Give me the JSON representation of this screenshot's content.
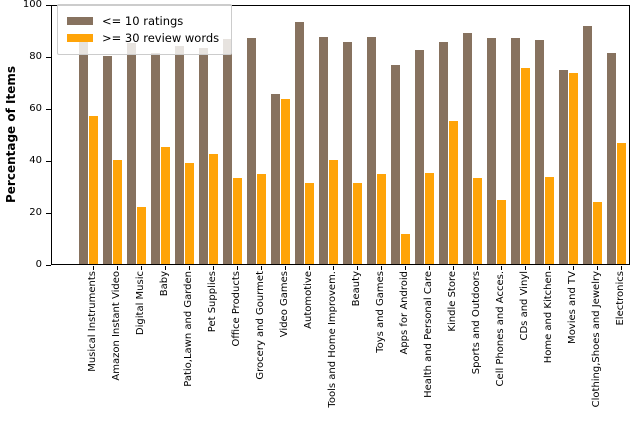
{
  "figure": {
    "background": "#ffffff",
    "axis_color": "#000000"
  },
  "chart_data": {
    "type": "bar",
    "title": "",
    "xlabel": "",
    "ylabel": "Percentage of Items",
    "ylim": [
      0,
      100
    ],
    "yticks": [
      0,
      20,
      40,
      60,
      80,
      100
    ],
    "grid": false,
    "legend_position": "upper left",
    "categories": [
      "Musical Instruments",
      "Amazon Instant Video",
      "Digital Music",
      "Baby",
      "Patio,Lawn and Garden",
      "Pet Supplies",
      "Office Products",
      "Grocery and Gourmet",
      "Video Games",
      "Automotive",
      "Tools and Home Improvem.",
      "Beauty",
      "Toys and Games",
      "Apps for Android",
      "Health and Personal Care",
      "Kindle Store",
      "Sports and Outdoors",
      "Cell Phones and Acces.",
      "CDs and Vinyl",
      "Home and Kitchen",
      "Movies and TV",
      "Clothing,Shoes and Jewelry",
      "Electronics"
    ],
    "series": [
      {
        "name": "<= 10 ratings",
        "color": "#87725f",
        "values": [
          86,
          80,
          85,
          81,
          84,
          83,
          86.5,
          87,
          65.5,
          93,
          87.5,
          85.5,
          87.5,
          76.5,
          82.5,
          85.5,
          89,
          87,
          87,
          86,
          74.5,
          91.5,
          81
        ]
      },
      {
        "name": ">= 30 review words",
        "color": "#ffa408",
        "values": [
          57,
          40,
          22,
          45,
          39,
          42.5,
          33,
          34.5,
          63.5,
          31,
          40,
          31,
          34.5,
          11.5,
          35,
          55,
          33,
          24.5,
          75.5,
          33.5,
          73.5,
          24,
          46.5
        ]
      }
    ]
  }
}
